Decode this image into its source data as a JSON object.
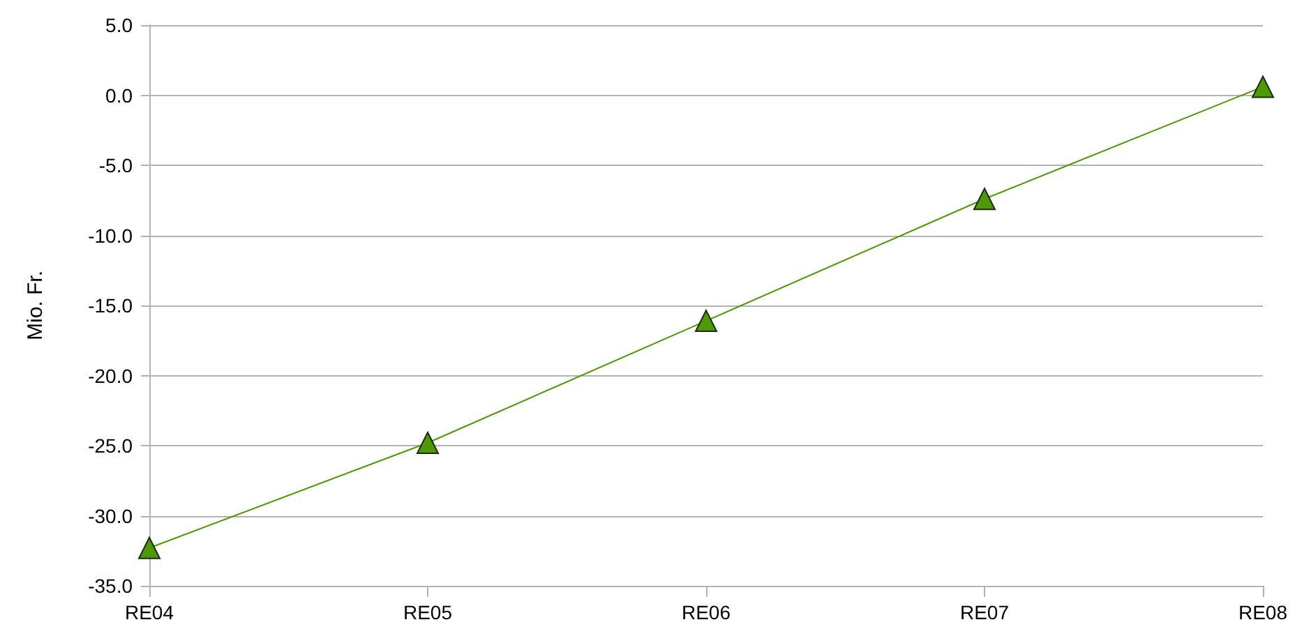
{
  "chart_data": {
    "type": "line",
    "ylabel": "Mio. Fr.",
    "categories": [
      "RE04",
      "RE05",
      "RE06",
      "RE07",
      "RE08"
    ],
    "series": [
      {
        "color": "#4e9a06",
        "values": [
          -32.3,
          -24.8,
          -16.1,
          -7.4,
          0.6
        ]
      }
    ],
    "ylim": [
      -35,
      5
    ],
    "yticks": [
      {
        "value": -35,
        "label": "-35.0"
      },
      {
        "value": -30,
        "label": "-30.0"
      },
      {
        "value": -25,
        "label": "-25.0"
      },
      {
        "value": -20,
        "label": "-20.0"
      },
      {
        "value": -15,
        "label": "-15.0"
      },
      {
        "value": -10,
        "label": "-10.0"
      },
      {
        "value": -5,
        "label": "-5.0"
      },
      {
        "value": 0,
        "label": "0.0"
      },
      {
        "value": 5,
        "label": "5.0"
      }
    ],
    "grid": "y",
    "marker": "triangle",
    "line_style": "solid"
  }
}
